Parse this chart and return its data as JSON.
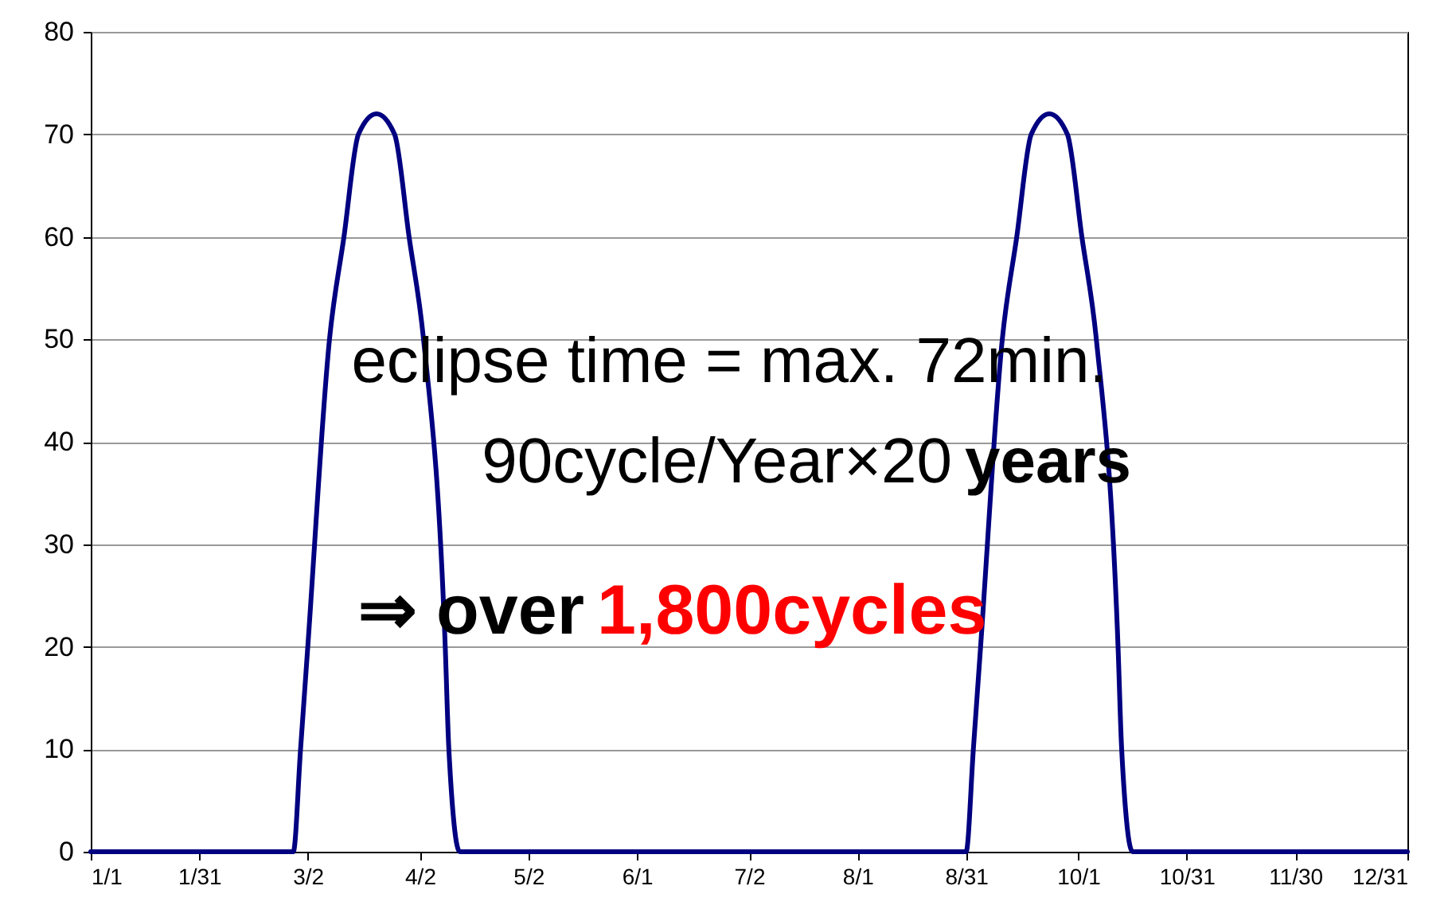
{
  "chart_data": {
    "type": "line",
    "x": [
      "--01-01",
      "--02-26",
      "--02-28",
      "--03-02",
      "--03-08",
      "--03-12",
      "--03-16",
      "--03-21",
      "--03-26",
      "--03-30",
      "--04-03",
      "--04-09",
      "--04-10",
      "--04-13",
      "--08-31",
      "--09-02",
      "--09-04",
      "--09-10",
      "--09-14",
      "--09-18",
      "--09-23",
      "--09-28",
      "--10-02",
      "--10-06",
      "--10-12",
      "--10-13",
      "--10-16",
      "--12-31"
    ],
    "series": [
      {
        "color": "#000080",
        "values": [
          0,
          0,
          10,
          20,
          50,
          60,
          70,
          72,
          70,
          60,
          50,
          20,
          10,
          0,
          0,
          10,
          20,
          50,
          60,
          70,
          72,
          70,
          60,
          50,
          20,
          10,
          0,
          0
        ]
      }
    ],
    "xlim": [
      "--01-01",
      "--12-31"
    ],
    "xticks": [
      {
        "value": "--01-01",
        "label": "1/1"
      },
      {
        "value": "--01-31",
        "label": "1/31"
      },
      {
        "value": "--03-02",
        "label": "3/2"
      },
      {
        "value": "--04-02",
        "label": "4/2"
      },
      {
        "value": "--05-02",
        "label": "5/2"
      },
      {
        "value": "--06-01",
        "label": "6/1"
      },
      {
        "value": "--07-02",
        "label": "7/2"
      },
      {
        "value": "--08-01",
        "label": "8/1"
      },
      {
        "value": "--08-31",
        "label": "8/31"
      },
      {
        "value": "--10-01",
        "label": "10/1"
      },
      {
        "value": "--10-31",
        "label": "10/31"
      },
      {
        "value": "--11-30",
        "label": "11/30"
      },
      {
        "value": "--12-31",
        "label": "12/31"
      }
    ],
    "ylim": [
      0,
      80
    ],
    "yticks": [
      0,
      10,
      20,
      30,
      40,
      50,
      60,
      70,
      80
    ],
    "grid": "y",
    "marker": "none",
    "line_style": "solid",
    "annotations": [
      "eclipse time  = max. 72min.",
      "90cycle/Year×20 years",
      "⇒ over 1,800cycles"
    ]
  }
}
